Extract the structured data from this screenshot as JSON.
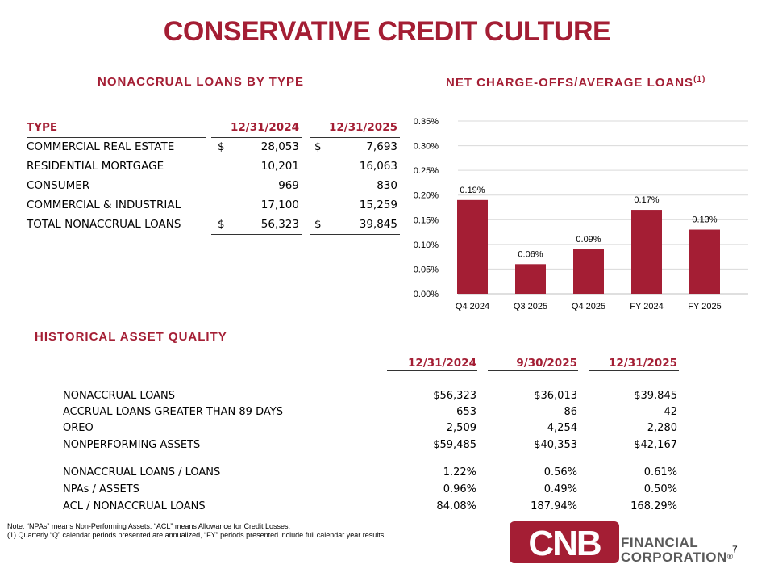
{
  "title": "CONSERVATIVE CREDIT CULTURE",
  "nonaccrual": {
    "section_title": "NONACCRUAL LOANS BY TYPE",
    "headers": [
      "TYPE",
      "12/31/2024",
      "12/31/2025"
    ],
    "rows": [
      {
        "type": "COMMERCIAL REAL ESTATE",
        "s1": "$",
        "v1": "28,053",
        "s2": "$",
        "v2": "7,693"
      },
      {
        "type": "RESIDENTIAL MORTGAGE",
        "s1": "",
        "v1": "10,201",
        "s2": "",
        "v2": "16,063"
      },
      {
        "type": "CONSUMER",
        "s1": "",
        "v1": "969",
        "s2": "",
        "v2": "830"
      },
      {
        "type": "COMMERCIAL & INDUSTRIAL",
        "s1": "",
        "v1": "17,100",
        "s2": "",
        "v2": "15,259"
      },
      {
        "type": "TOTAL NONACCRUAL LOANS",
        "s1": "$",
        "v1": "56,323",
        "s2": "$",
        "v2": "39,845"
      }
    ]
  },
  "chart_section": {
    "title": "NET CHARGE-OFFS/AVERAGE LOANS",
    "title_sup": "(1)"
  },
  "chart_data": {
    "type": "bar",
    "categories": [
      "Q4 2024",
      "Q3 2025",
      "Q4 2025",
      "FY 2024",
      "FY 2025"
    ],
    "values": [
      0.19,
      0.06,
      0.09,
      0.17,
      0.13
    ],
    "labels": [
      "0.19%",
      "0.06%",
      "0.09%",
      "0.17%",
      "0.13%"
    ],
    "yticks": [
      "0.00%",
      "0.05%",
      "0.10%",
      "0.15%",
      "0.20%",
      "0.25%",
      "0.30%",
      "0.35%"
    ],
    "ylim": [
      0,
      0.35
    ],
    "unit": "%",
    "grid": true,
    "color": "#a41e34"
  },
  "historical": {
    "section_title": "HISTORICAL ASSET QUALITY",
    "headers": [
      "12/31/2024",
      "9/30/2025",
      "12/31/2025"
    ],
    "rows": [
      {
        "label": "NONACCRUAL LOANS",
        "values": [
          "$56,323",
          "$36,013",
          "$39,845"
        ]
      },
      {
        "label": "ACCRUAL LOANS GREATER THAN 89 DAYS",
        "values": [
          "653",
          "86",
          "42"
        ]
      },
      {
        "label": "OREO",
        "values": [
          "2,509",
          "4,254",
          "2,280"
        ]
      },
      {
        "label": "NONPERFORMING ASSETS",
        "values": [
          "$59,485",
          "$40,353",
          "$42,167"
        ]
      },
      {
        "label": "NONACCRUAL LOANS / LOANS",
        "values": [
          "1.22%",
          "0.56%",
          "0.61%"
        ]
      },
      {
        "label": "NPAs / ASSETS",
        "values": [
          "0.96%",
          "0.49%",
          "0.50%"
        ]
      },
      {
        "label": "ACL / NONACCRUAL LOANS",
        "values": [
          "84.08%",
          "187.94%",
          "168.29%"
        ]
      }
    ]
  },
  "notes": {
    "line1": "Note: “NPAs” means Non-Performing Assets. “ACL” means Allowance for Credit Losses.",
    "line2": "(1) Quarterly “Q” calendar periods presented are annualized, “FY” periods presented include full calendar year results."
  },
  "logo": {
    "mark": "CNB",
    "line1": "FINANCIAL",
    "line2": "CORPORATION",
    "reg": "®"
  },
  "page_number": "7"
}
